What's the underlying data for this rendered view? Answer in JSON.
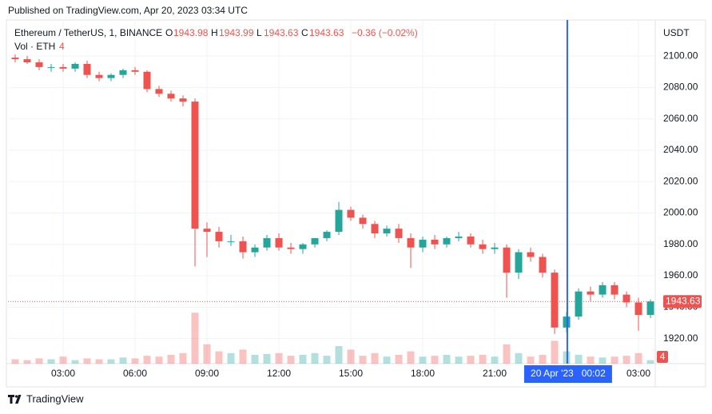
{
  "published": "Published on TradingView.com, Apr 20, 2023 03:34 UTC",
  "brand": "TradingView",
  "chart_data": {
    "type": "candlestick",
    "title": "Ethereum / TetherUS, 1, BINANCE",
    "legend": {
      "open_label": "O",
      "open": 1943.98,
      "high_label": "H",
      "high": 1943.99,
      "low_label": "L",
      "low": 1943.63,
      "close_label": "C",
      "close": 1943.63,
      "change": "−0.36 (−0.02%)"
    },
    "volume_title": "Vol · ETH",
    "volume_last": 4,
    "y_axis_label": "USDT",
    "last_price": 1943.63,
    "up_color": "#26a69a",
    "down_color": "#ef5350",
    "x": [
      1.0,
      1.5,
      2.0,
      2.5,
      3.0,
      3.5,
      4.0,
      4.5,
      5.0,
      5.5,
      6.0,
      6.5,
      7.0,
      7.5,
      8.0,
      8.5,
      9.0,
      9.5,
      10.0,
      10.5,
      11.0,
      11.5,
      12.0,
      12.5,
      13.0,
      13.5,
      14.0,
      14.5,
      15.0,
      15.5,
      16.0,
      16.5,
      17.0,
      17.5,
      18.0,
      18.5,
      19.0,
      19.5,
      20.0,
      20.5,
      21.0,
      21.5,
      22.0,
      22.5,
      23.0,
      23.5,
      24.0,
      24.5,
      25.0,
      25.5,
      26.0,
      26.5,
      27.0,
      27.5
    ],
    "open": [
      2099,
      2098,
      2096,
      2093,
      2093,
      2092,
      2095,
      2088,
      2086,
      2088,
      2091,
      2090,
      2079,
      2076,
      2073,
      2071,
      1990,
      1988,
      1982,
      1982,
      1975,
      1978,
      1984,
      1978,
      1977,
      1980,
      1984,
      1988,
      2002,
      1997,
      1993,
      1987,
      1990,
      1984,
      1978,
      1983,
      1980,
      1984,
      1985,
      1980,
      1977,
      1978,
      1962,
      1975,
      1972,
      1962,
      1927,
      1934,
      1950,
      1948,
      1954,
      1948,
      1943,
      1935
    ],
    "high": [
      2101,
      2100,
      2098,
      2095,
      2095,
      2096,
      2097,
      2090,
      2089,
      2092,
      2093,
      2091,
      2081,
      2078,
      2075,
      2073,
      1994,
      1991,
      1986,
      1985,
      1980,
      1986,
      1987,
      1981,
      1981,
      1984,
      1989,
      2007,
      2004,
      1999,
      1995,
      1992,
      1993,
      1987,
      1985,
      1986,
      1985,
      1988,
      1987,
      1983,
      1981,
      1980,
      1977,
      1978,
      1974,
      1964,
      1937,
      1952,
      1953,
      1956,
      1956,
      1950,
      1946,
      1945
    ],
    "low": [
      2096,
      2095,
      2091,
      2090,
      2090,
      2090,
      2086,
      2084,
      2084,
      2086,
      2088,
      2077,
      2074,
      2071,
      2068,
      1966,
      1972,
      1978,
      1979,
      1971,
      1972,
      1976,
      1976,
      1974,
      1974,
      1978,
      1982,
      1986,
      1995,
      1990,
      1984,
      1985,
      1981,
      1965,
      1975,
      1977,
      1978,
      1982,
      1978,
      1974,
      1974,
      1946,
      1958,
      1969,
      1959,
      1923,
      1924,
      1932,
      1944,
      1946,
      1945,
      1940,
      1925,
      1933
    ],
    "close": [
      2098,
      2096,
      2093,
      2093,
      2092,
      2095,
      2088,
      2086,
      2088,
      2091,
      2090,
      2079,
      2076,
      2073,
      2071,
      1990,
      1988,
      1982,
      1982,
      1975,
      1978,
      1984,
      1978,
      1977,
      1980,
      1984,
      1988,
      2002,
      1997,
      1993,
      1987,
      1990,
      1984,
      1978,
      1983,
      1980,
      1984,
      1985,
      1980,
      1977,
      1978,
      1962,
      1975,
      1972,
      1962,
      1927,
      1934,
      1950,
      1948,
      1954,
      1948,
      1943,
      1935,
      1943.63
    ],
    "volume": [
      5,
      4,
      6,
      5,
      8,
      4,
      6,
      5,
      5,
      7,
      6,
      9,
      8,
      10,
      12,
      58,
      22,
      14,
      12,
      16,
      10,
      11,
      12,
      9,
      10,
      12,
      9,
      20,
      16,
      9,
      12,
      8,
      10,
      14,
      8,
      9,
      10,
      8,
      9,
      10,
      8,
      22,
      12,
      8,
      10,
      26,
      14,
      10,
      8,
      7,
      8,
      9,
      12,
      4
    ],
    "vlim": [
      0,
      100
    ],
    "xlim": [
      0.7,
      27.7
    ],
    "ylim": [
      1904,
      2123
    ],
    "xticks": [
      {
        "value": 3,
        "label": "03:00"
      },
      {
        "value": 6,
        "label": "06:00"
      },
      {
        "value": 9,
        "label": "09:00"
      },
      {
        "value": 12,
        "label": "12:00"
      },
      {
        "value": 15,
        "label": "15:00"
      },
      {
        "value": 18,
        "label": "18:00"
      },
      {
        "value": 21,
        "label": "21:00"
      },
      {
        "value": 27,
        "label": "03:00"
      }
    ],
    "yticks": [
      {
        "value": 1920,
        "label": "1920.00"
      },
      {
        "value": 1940,
        "label": "1940.00"
      },
      {
        "value": 1960,
        "label": "1960.00"
      },
      {
        "value": 1980,
        "label": "1980.00"
      },
      {
        "value": 2000,
        "label": "2000.00"
      },
      {
        "value": 2020,
        "label": "2020.00"
      },
      {
        "value": 2040,
        "label": "2040.00"
      },
      {
        "value": 2060,
        "label": "2060.00"
      },
      {
        "value": 2080,
        "label": "2080.00"
      },
      {
        "value": 2100,
        "label": "2100.00"
      }
    ],
    "crosshair": {
      "x": 24.03,
      "label": "20 Apr '23   00:02",
      "color": "#2962ff"
    },
    "grid": true
  }
}
